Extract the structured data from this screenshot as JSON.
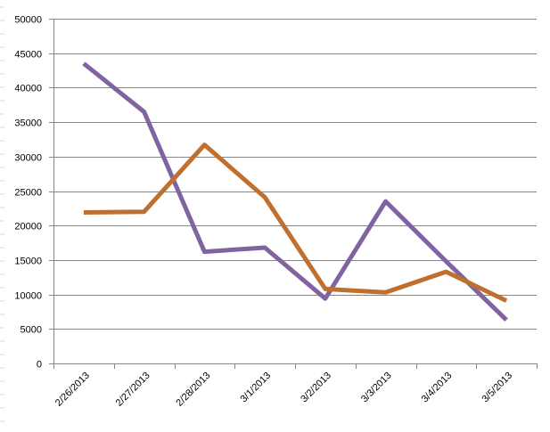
{
  "chart_data": {
    "type": "line",
    "title": "",
    "xlabel": "",
    "ylabel": "",
    "categories": [
      "2/26/2013",
      "2/27/2013",
      "2/28/2013",
      "3/1/2013",
      "3/2/2013",
      "3/3/2013",
      "3/4/2013",
      "3/5/2013"
    ],
    "ylim": [
      0,
      50000
    ],
    "y_ticks": [
      0,
      5000,
      10000,
      15000,
      20000,
      25000,
      30000,
      35000,
      40000,
      45000,
      50000
    ],
    "grid": "horizontal",
    "legend": "none",
    "series": [
      {
        "color": "#8064a2",
        "values": [
          43500,
          36500,
          16200,
          16800,
          9400,
          23500,
          14800,
          6300
        ]
      },
      {
        "color": "#c0702e",
        "values": [
          21900,
          22000,
          31700,
          24100,
          10800,
          10300,
          13300,
          9100
        ]
      }
    ]
  }
}
